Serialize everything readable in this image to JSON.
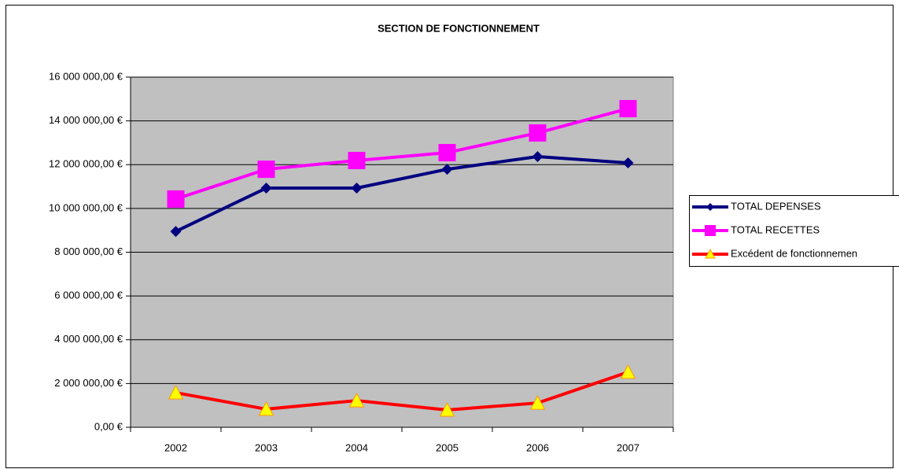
{
  "chart_data": {
    "type": "line",
    "title": "SECTION DE FONCTIONNEMENT",
    "categories": [
      "2002",
      "2003",
      "2004",
      "2005",
      "2006",
      "2007"
    ],
    "series": [
      {
        "name": "TOTAL DEPENSES",
        "color": "#000080",
        "marker": "diamond",
        "marker_color": "#000080",
        "values": [
          8950000,
          10930000,
          10930000,
          11790000,
          12370000,
          12080000
        ]
      },
      {
        "name": "TOTAL RECETTES",
        "color": "#ff00ff",
        "marker": "square",
        "marker_color": "#ff00ff",
        "values": [
          10430000,
          11790000,
          12190000,
          12550000,
          13450000,
          14560000
        ]
      },
      {
        "name": "Excédent de fonctionnemen",
        "color": "#ff0000",
        "marker": "triangle",
        "marker_color": "#ffff00",
        "values": [
          1580000,
          830000,
          1220000,
          790000,
          1110000,
          2520000
        ]
      }
    ],
    "ylim": [
      0,
      16000000
    ],
    "yticks": [
      {
        "value": 0,
        "label": "0,00 €"
      },
      {
        "value": 2000000,
        "label": "2 000 000,00 €"
      },
      {
        "value": 4000000,
        "label": "4 000 000,00 €"
      },
      {
        "value": 6000000,
        "label": "6 000 000,00 €"
      },
      {
        "value": 8000000,
        "label": "8 000 000,00 €"
      },
      {
        "value": 10000000,
        "label": "10 000 000,00 €"
      },
      {
        "value": 12000000,
        "label": "12 000 000,00 €"
      },
      {
        "value": 14000000,
        "label": "14 000 000,00 €"
      },
      {
        "value": 16000000,
        "label": "16 000 000,00 €"
      }
    ],
    "grid": true,
    "legend": "right",
    "plot_background": "#c0c0c0"
  }
}
